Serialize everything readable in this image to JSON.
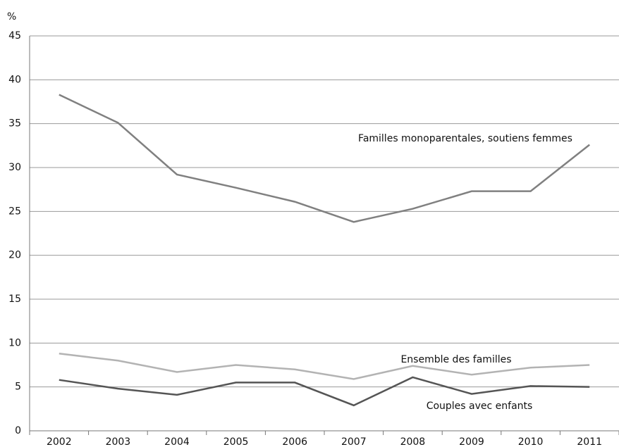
{
  "chart_data": {
    "type": "line",
    "y_label": "%",
    "categories": [
      "2002",
      "2003",
      "2004",
      "2005",
      "2006",
      "2007",
      "2008",
      "2009",
      "2010",
      "2011"
    ],
    "series": [
      {
        "name": "Familles monoparentales, soutiens femmes",
        "color": "#808080",
        "values": [
          38.3,
          35.1,
          29.2,
          27.7,
          26.1,
          23.8,
          25.3,
          27.3,
          27.3,
          32.6
        ]
      },
      {
        "name": "Ensemble des familles",
        "color": "#b3b3b3",
        "values": [
          8.8,
          8.0,
          6.7,
          7.5,
          7.0,
          5.9,
          7.4,
          6.4,
          7.2,
          7.5
        ]
      },
      {
        "name": "Couples avec enfants",
        "color": "#555555",
        "values": [
          5.8,
          4.8,
          4.1,
          5.5,
          5.5,
          2.9,
          6.1,
          4.2,
          5.1,
          5.0
        ]
      }
    ],
    "ylim": [
      0,
      45
    ],
    "yticks": [
      0,
      5,
      10,
      15,
      20,
      25,
      30,
      35,
      40,
      45
    ],
    "grid": true
  }
}
